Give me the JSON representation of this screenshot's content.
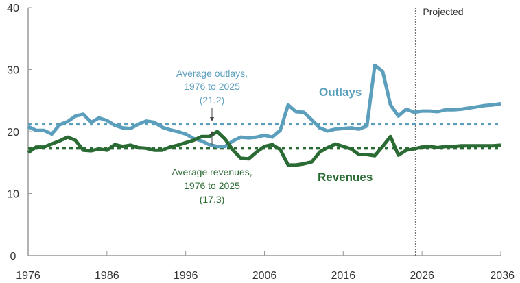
{
  "chart_data": {
    "type": "line",
    "title": "",
    "xlabel": "",
    "ylabel": "",
    "xlim": [
      1976,
      2036
    ],
    "ylim": [
      0,
      40
    ],
    "x_ticks": [
      1976,
      1986,
      1996,
      2006,
      2016,
      2026,
      2036
    ],
    "y_ticks": [
      0,
      10,
      20,
      30,
      40
    ],
    "grid": false,
    "legend": "inline labels",
    "projection_start": 2025,
    "projection_label": "Projected",
    "x": [
      1976,
      1977,
      1978,
      1979,
      1980,
      1981,
      1982,
      1983,
      1984,
      1985,
      1986,
      1987,
      1988,
      1989,
      1990,
      1991,
      1992,
      1993,
      1994,
      1995,
      1996,
      1997,
      1998,
      1999,
      2000,
      2001,
      2002,
      2003,
      2004,
      2005,
      2006,
      2007,
      2008,
      2009,
      2010,
      2011,
      2012,
      2013,
      2014,
      2015,
      2016,
      2017,
      2018,
      2019,
      2020,
      2021,
      2022,
      2023,
      2024,
      2025,
      2026,
      2027,
      2028,
      2029,
      2030,
      2031,
      2032,
      2033,
      2034,
      2035,
      2036
    ],
    "series": [
      {
        "name": "Outlays",
        "color": "#5b9fbd",
        "values": [
          20.8,
          20.2,
          20.2,
          19.6,
          21.1,
          21.6,
          22.5,
          22.8,
          21.5,
          22.2,
          21.8,
          21.0,
          20.6,
          20.5,
          21.2,
          21.7,
          21.5,
          20.7,
          20.3,
          20.0,
          19.6,
          18.9,
          18.5,
          17.9,
          17.6,
          17.6,
          18.5,
          19.1,
          19.0,
          19.1,
          19.4,
          19.1,
          20.2,
          24.3,
          23.2,
          23.1,
          21.9,
          20.6,
          20.1,
          20.4,
          20.5,
          20.6,
          20.4,
          20.9,
          30.7,
          29.7,
          24.3,
          22.5,
          23.6,
          23.1,
          23.3,
          23.3,
          23.2,
          23.5,
          23.5,
          23.6,
          23.8,
          24.0,
          24.2,
          24.3,
          24.5
        ]
      },
      {
        "name": "Revenues",
        "color": "#2a6a33",
        "values": [
          16.6,
          17.5,
          17.5,
          18.0,
          18.5,
          19.1,
          18.6,
          17.0,
          16.9,
          17.2,
          17.0,
          17.9,
          17.6,
          17.8,
          17.4,
          17.3,
          17.0,
          17.0,
          17.5,
          17.8,
          18.2,
          18.6,
          19.2,
          19.2,
          20.0,
          18.8,
          17.0,
          15.7,
          15.6,
          16.7,
          17.6,
          17.9,
          17.1,
          14.6,
          14.6,
          14.8,
          15.1,
          16.7,
          17.4,
          18.0,
          17.6,
          17.2,
          16.3,
          16.3,
          16.1,
          17.6,
          19.2,
          16.2,
          17.0,
          17.2,
          17.5,
          17.6,
          17.4,
          17.6,
          17.6,
          17.7,
          17.7,
          17.7,
          17.7,
          17.7,
          17.8
        ]
      }
    ],
    "averages": [
      {
        "name": "Average outlays, 1976 to 2025",
        "value": 21.2,
        "color": "#5b9fbd"
      },
      {
        "name": "Average revenues, 1976 to 2025",
        "value": 17.3,
        "color": "#2a6a33"
      }
    ],
    "annotations": [
      {
        "lines": [
          "Average outlays,",
          "1976 to 2025",
          "(21.2)"
        ],
        "color": "#5b9fbd",
        "arrow": "down",
        "at_year": 1999
      },
      {
        "lines": [
          "Average revenues,",
          "1976 to 2025",
          "(17.3)"
        ],
        "color": "#2a6a33",
        "arrow": "up",
        "at_year": 1999
      },
      {
        "lines": [
          "Outlays"
        ],
        "color": "#5b9fbd"
      },
      {
        "lines": [
          "Revenues"
        ],
        "color": "#2a6a33"
      },
      {
        "lines": [
          "Projected"
        ],
        "color": "#333333"
      }
    ]
  },
  "labels": {
    "y_ticks": [
      "0",
      "10",
      "20",
      "30",
      "40"
    ],
    "x_ticks": [
      "1976",
      "1986",
      "1996",
      "2006",
      "2016",
      "2026",
      "2036"
    ],
    "outlays": "Outlays",
    "revenues": "Revenues",
    "projected": "Projected",
    "avg_outlays": [
      "Average outlays,",
      "1976 to 2025",
      "(21.2)"
    ],
    "avg_revenues": [
      "Average revenues,",
      "1976 to 2025",
      "(17.3)"
    ]
  }
}
